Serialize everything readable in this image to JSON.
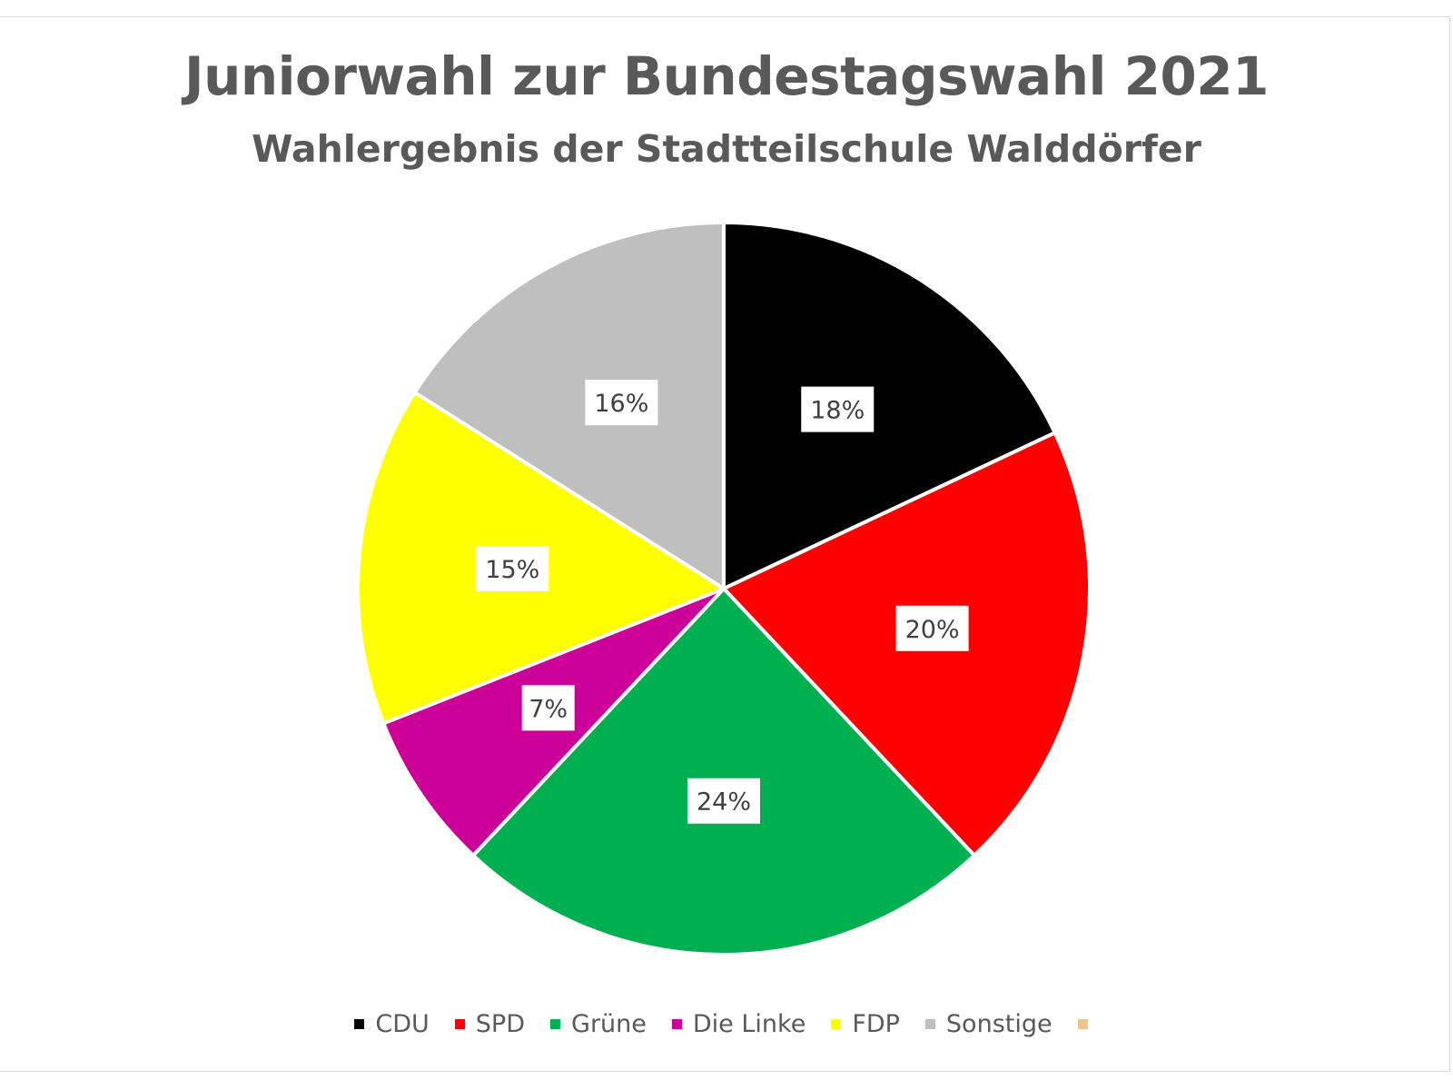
{
  "chart_data": {
    "type": "pie",
    "title": "Juniorwahl zur Bundestagswahl 2021",
    "subtitle": "Wahlergebnis der Stadtteilschule Walddörfer",
    "categories": [
      "CDU",
      "SPD",
      "Grüne",
      "Die Linke",
      "FDP",
      "Sonstige",
      ""
    ],
    "values": [
      18,
      20,
      24,
      7,
      15,
      16,
      0
    ],
    "labels": [
      "18%",
      "20%",
      "24%",
      "7%",
      "15%",
      "16%",
      ""
    ],
    "colors": [
      "#000000",
      "#ff0000",
      "#00b050",
      "#cc0099",
      "#ffff00",
      "#bfbfbf",
      "#f4c58a"
    ],
    "start_angle": "12 o'clock",
    "direction": "clockwise",
    "legend_position": "bottom",
    "data_labels": "white boxes inside slices"
  }
}
